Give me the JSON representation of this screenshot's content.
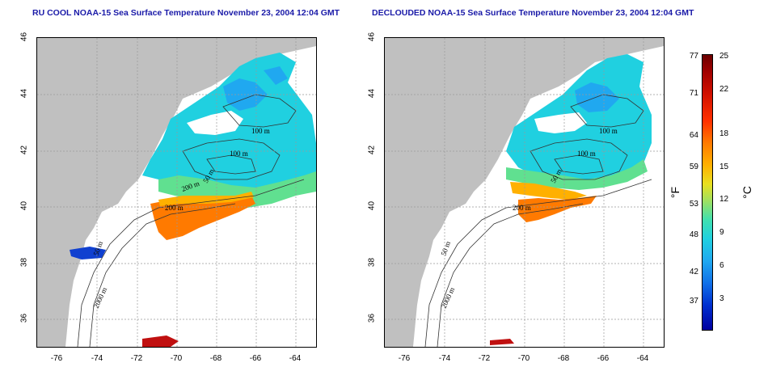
{
  "panels": {
    "left": {
      "title": "RU COOL NOAA-15 Sea Surface Temperature November 23, 2004 12:04 GMT",
      "contour_labels": [
        "100 m",
        "100 m",
        "50 m",
        "200 m",
        "200 m",
        "50 m",
        "2000 m"
      ]
    },
    "right": {
      "title": "DECLOUDED NOAA-15 Sea Surface Temperature November 23, 2004 12:04 GMT",
      "contour_labels": [
        "100 m",
        "100 m",
        "50 m",
        "200 m",
        "50 m",
        "2000 m"
      ]
    }
  },
  "axes": {
    "lat_ticks": [
      "46",
      "44",
      "42",
      "40",
      "38",
      "36"
    ],
    "lon_ticks": [
      "-76",
      "-74",
      "-72",
      "-70",
      "-68",
      "-66",
      "-64"
    ]
  },
  "colorbar": {
    "fahrenheit_labels": [
      "77",
      "71",
      "64",
      "59",
      "53",
      "48",
      "42",
      "37"
    ],
    "celsius_labels": [
      "25",
      "22",
      "18",
      "15",
      "12",
      "9",
      "6",
      "3"
    ],
    "fahrenheit_unit": "°F",
    "celsius_unit": "°C"
  },
  "colors": {
    "land": "#c0c0c0",
    "title": "#1a1aa8",
    "grid": "#999999",
    "warm": "#ff7a00",
    "mid": "#20d0e0",
    "cool": "#1070e8"
  }
}
